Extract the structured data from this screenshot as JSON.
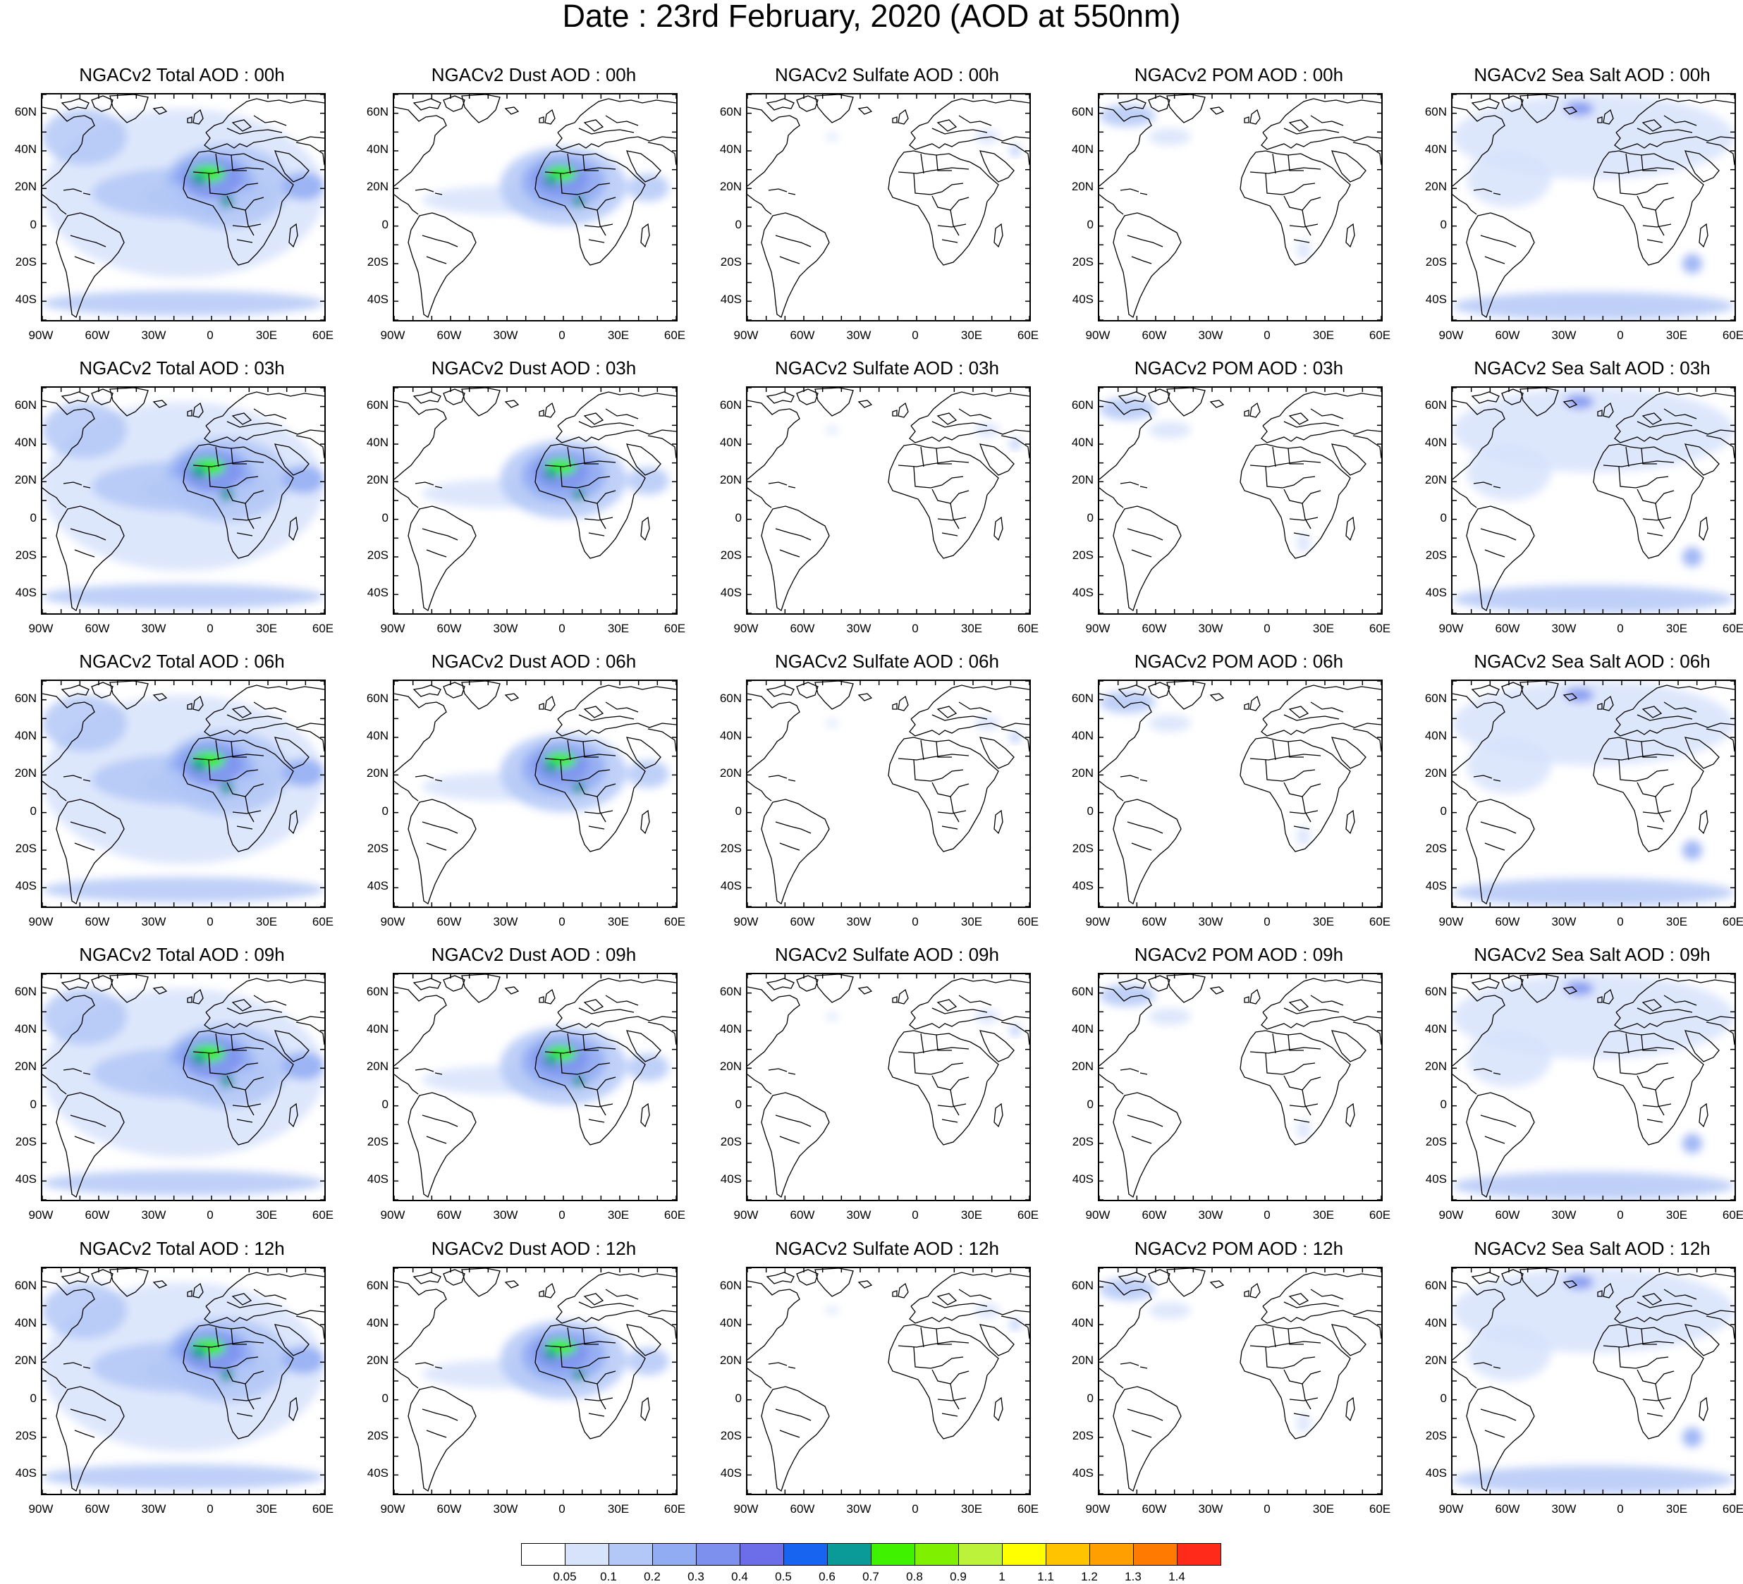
{
  "title": "Date : 23rd February, 2020 (AOD at 550nm)",
  "lat_ticks": [
    "60N",
    "40N",
    "20N",
    "0",
    "20S",
    "40S"
  ],
  "lon_ticks": [
    "90W",
    "60W",
    "30W",
    "0",
    "30E",
    "60E"
  ],
  "rows": [
    [
      "NGACv2 Total AOD : 00h",
      "NGACv2 Dust AOD : 00h",
      "NGACv2 Sulfate AOD : 00h",
      "NGACv2 POM AOD : 00h",
      "NGACv2 Sea Salt AOD : 00h"
    ],
    [
      "NGACv2 Total AOD : 03h",
      "NGACv2 Dust AOD : 03h",
      "NGACv2 Sulfate AOD : 03h",
      "NGACv2 POM AOD : 03h",
      "NGACv2 Sea Salt AOD : 03h"
    ],
    [
      "NGACv2 Total AOD : 06h",
      "NGACv2 Dust AOD : 06h",
      "NGACv2 Sulfate AOD : 06h",
      "NGACv2 POM AOD : 06h",
      "NGACv2 Sea Salt AOD : 06h"
    ],
    [
      "NGACv2 Total AOD : 09h",
      "NGACv2 Dust AOD : 09h",
      "NGACv2 Sulfate AOD : 09h",
      "NGACv2 POM AOD : 09h",
      "NGACv2 Sea Salt  AOD : 09h"
    ],
    [
      "NGACv2 Total AOD  : 12h",
      "NGACv2 Dust AOD : 12h",
      "NGACv2 Sulfate AOD : 12h",
      "NGACv2 POM  AOD : 12h",
      "NGACv2 Sea Salt  AOD : 12h"
    ]
  ],
  "colorbar": {
    "labels": [
      "0.05",
      "0.1",
      "0.2",
      "0.3",
      "0.4",
      "0.5",
      "0.6",
      "0.7",
      "0.8",
      "0.9",
      "1",
      "1.1",
      "1.2",
      "1.3",
      "1.4"
    ],
    "colors": [
      "#ffffff",
      "#d7e3fb",
      "#b4c8f7",
      "#91acf3",
      "#7d90ee",
      "#6b6ee8",
      "#1764f0",
      "#0a9a98",
      "#3ef200",
      "#7ff000",
      "#bdf23a",
      "#ffff00",
      "#ffc300",
      "#ffa000",
      "#ff7a00",
      "#ff2a1a"
    ]
  }
}
